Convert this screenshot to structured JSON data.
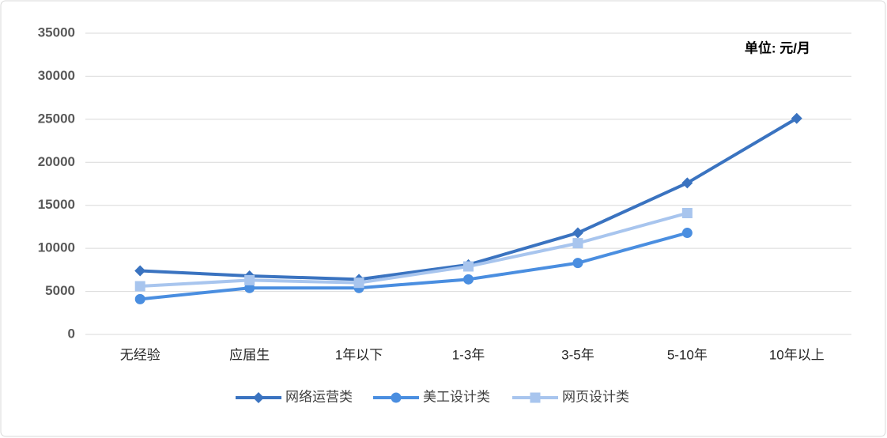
{
  "chart_data": {
    "type": "line",
    "annotation": "单位: 元/月",
    "categories": [
      "无经验",
      "应届生",
      "1年以下",
      "1-3年",
      "3-5年",
      "5-10年",
      "10年以上"
    ],
    "series": [
      {
        "name": "网络运营类",
        "color": "#3a73c0",
        "marker": "diamond",
        "values": [
          7400,
          6800,
          6400,
          8100,
          11800,
          17600,
          25100
        ]
      },
      {
        "name": "美工设计类",
        "color": "#4a8ee0",
        "marker": "circle",
        "values": [
          4100,
          5400,
          5400,
          6400,
          8300,
          11800,
          null
        ]
      },
      {
        "name": "网页设计类",
        "color": "#a8c5ee",
        "marker": "square",
        "values": [
          5600,
          6300,
          6000,
          7900,
          10600,
          14100,
          null
        ]
      }
    ],
    "ylim": [
      0,
      35000
    ],
    "yticks": [
      0,
      5000,
      10000,
      15000,
      20000,
      25000,
      30000,
      35000
    ],
    "grid": true,
    "legend": "bottom"
  }
}
